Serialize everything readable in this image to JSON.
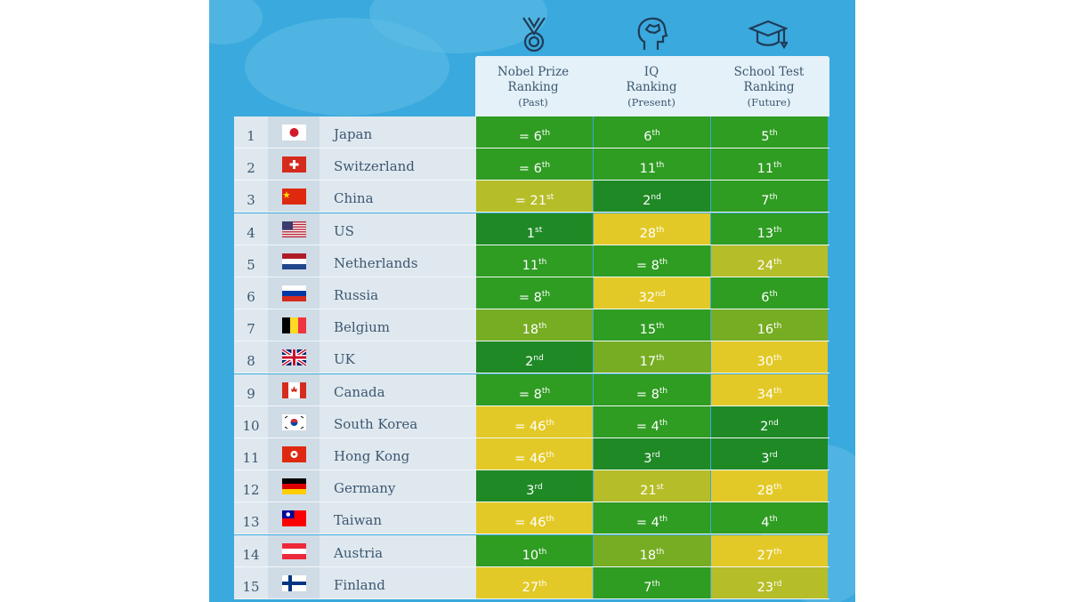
{
  "header": {
    "columns": [
      {
        "title": "Nobel Prize",
        "title2": "Ranking",
        "sub": "(Past)",
        "icon": "medal-icon"
      },
      {
        "title": "IQ",
        "title2": "Ranking",
        "sub": "(Present)",
        "icon": "brain-head-icon"
      },
      {
        "title": "School Test",
        "title2": "Ranking",
        "sub": "(Future)",
        "icon": "graduation-cap-icon"
      }
    ]
  },
  "colors": {
    "dark_green": "#1f8a25",
    "green": "#2f9c22",
    "light_green": "#76ad23",
    "olive": "#b5bd28",
    "yellow": "#e3c927"
  },
  "rows": [
    {
      "rank": "1",
      "country": "Japan",
      "flag": "japan",
      "cells": [
        [
          "= 6",
          "th",
          "green"
        ],
        [
          "6",
          "th",
          "green"
        ],
        [
          "5",
          "th",
          "green"
        ]
      ]
    },
    {
      "rank": "2",
      "country": "Switzerland",
      "flag": "switzerland",
      "cells": [
        [
          "= 6",
          "th",
          "green"
        ],
        [
          "11",
          "th",
          "green"
        ],
        [
          "11",
          "th",
          "green"
        ]
      ]
    },
    {
      "rank": "3",
      "country": "China",
      "flag": "china",
      "cells": [
        [
          "= 21",
          "st",
          "olive"
        ],
        [
          "2",
          "nd",
          "dark_green"
        ],
        [
          "7",
          "th",
          "green"
        ]
      ]
    },
    {
      "rank": "4",
      "country": "US",
      "flag": "us",
      "cells": [
        [
          "1",
          "st",
          "dark_green"
        ],
        [
          "28",
          "th",
          "yellow"
        ],
        [
          "13",
          "th",
          "green"
        ]
      ]
    },
    {
      "rank": "5",
      "country": "Netherlands",
      "flag": "netherlands",
      "cells": [
        [
          "11",
          "th",
          "green"
        ],
        [
          "= 8",
          "th",
          "green"
        ],
        [
          "24",
          "th",
          "olive"
        ]
      ]
    },
    {
      "rank": "6",
      "country": "Russia",
      "flag": "russia",
      "cells": [
        [
          "= 8",
          "th",
          "green"
        ],
        [
          "32",
          "nd",
          "yellow"
        ],
        [
          "6",
          "th",
          "green"
        ]
      ]
    },
    {
      "rank": "7",
      "country": "Belgium",
      "flag": "belgium",
      "cells": [
        [
          "18",
          "th",
          "light_green"
        ],
        [
          "15",
          "th",
          "green"
        ],
        [
          "16",
          "th",
          "light_green"
        ]
      ]
    },
    {
      "rank": "8",
      "country": "UK",
      "flag": "uk",
      "cells": [
        [
          "2",
          "nd",
          "dark_green"
        ],
        [
          "17",
          "th",
          "light_green"
        ],
        [
          "30",
          "th",
          "yellow"
        ]
      ]
    },
    {
      "rank": "9",
      "country": "Canada",
      "flag": "canada",
      "cells": [
        [
          "= 8",
          "th",
          "green"
        ],
        [
          "= 8",
          "th",
          "green"
        ],
        [
          "34",
          "th",
          "yellow"
        ]
      ]
    },
    {
      "rank": "10",
      "country": "South Korea",
      "flag": "south-korea",
      "cells": [
        [
          "= 46",
          "th",
          "yellow"
        ],
        [
          "= 4",
          "th",
          "green"
        ],
        [
          "2",
          "nd",
          "dark_green"
        ]
      ]
    },
    {
      "rank": "11",
      "country": "Hong Kong",
      "flag": "hong-kong",
      "cells": [
        [
          "= 46",
          "th",
          "yellow"
        ],
        [
          "3",
          "rd",
          "dark_green"
        ],
        [
          "3",
          "rd",
          "dark_green"
        ]
      ]
    },
    {
      "rank": "12",
      "country": "Germany",
      "flag": "germany",
      "cells": [
        [
          "3",
          "rd",
          "dark_green"
        ],
        [
          "21",
          "st",
          "olive"
        ],
        [
          "28",
          "th",
          "yellow"
        ]
      ]
    },
    {
      "rank": "13",
      "country": "Taiwan",
      "flag": "taiwan",
      "cells": [
        [
          "= 46",
          "th",
          "yellow"
        ],
        [
          "= 4",
          "th",
          "green"
        ],
        [
          "4",
          "th",
          "green"
        ]
      ]
    },
    {
      "rank": "14",
      "country": "Austria",
      "flag": "austria",
      "cells": [
        [
          "10",
          "th",
          "green"
        ],
        [
          "18",
          "th",
          "light_green"
        ],
        [
          "27",
          "th",
          "yellow"
        ]
      ]
    },
    {
      "rank": "15",
      "country": "Finland",
      "flag": "finland",
      "cells": [
        [
          "27",
          "th",
          "yellow"
        ],
        [
          "7",
          "th",
          "green"
        ],
        [
          "23",
          "rd",
          "olive"
        ]
      ]
    }
  ]
}
